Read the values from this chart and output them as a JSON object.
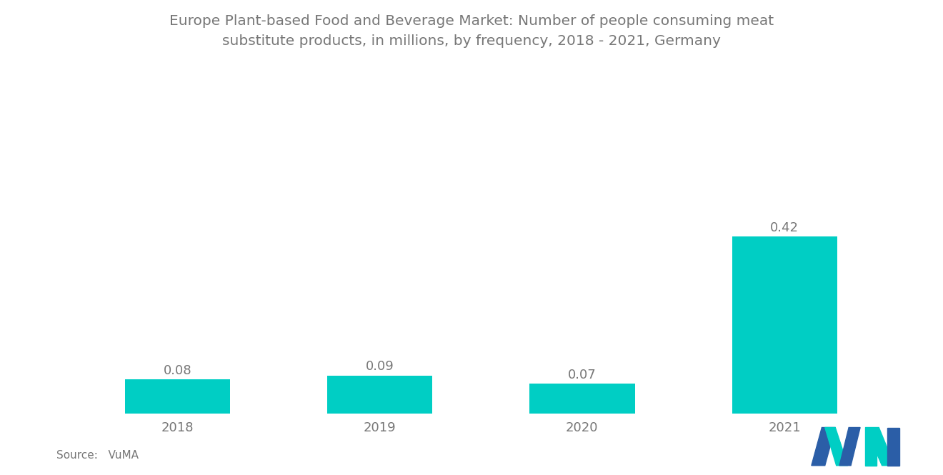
{
  "title_line1": "Europe Plant-based Food and Beverage Market: Number of people consuming meat",
  "title_line2": "substitute products, in millions, by frequency, 2018 - 2021, Germany",
  "categories": [
    "2018",
    "2019",
    "2020",
    "2021"
  ],
  "values": [
    0.08,
    0.09,
    0.07,
    0.42
  ],
  "bar_color": "#00CEC4",
  "background_color": "#FFFFFF",
  "title_color": "#777777",
  "label_color": "#777777",
  "source_text": "Source:   VuMA",
  "ylim": [
    0,
    0.52
  ],
  "bar_width": 0.52,
  "title_fontsize": 14.5,
  "label_fontsize": 13,
  "tick_fontsize": 13,
  "source_fontsize": 11,
  "logo_dark_blue": "#2B5EA7",
  "logo_teal": "#00CEC4"
}
